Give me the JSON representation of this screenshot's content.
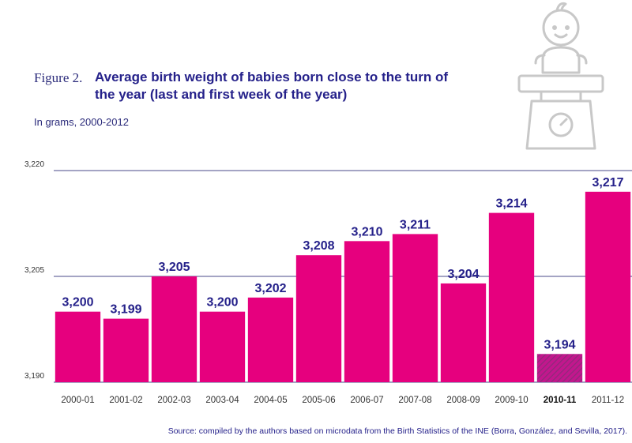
{
  "figure": {
    "label": "Figure 2.",
    "title": "Average birth weight of babies born close to the turn of the year (last and first week of the year)",
    "subtitle": "In grams, 2000-2012",
    "source": "Source: compiled by the authors based on microdata from the Birth Statistics of the INE (Borra, González, and Sevilla, 2017)."
  },
  "colors": {
    "bar": "#e6007e",
    "highlight_bar_hatch": "#8f2a7a",
    "highlight_bar_base": "#c2178d",
    "value_label": "#25218a",
    "gridline": "#4a4a8a",
    "tick_label": "#333333",
    "illustration": "#c8c8c8"
  },
  "illustration": {
    "icon": "baby-on-scale-icon"
  },
  "chart_data": {
    "type": "bar",
    "categories": [
      "2000-01",
      "2001-02",
      "2002-03",
      "2003-04",
      "2004-05",
      "2005-06",
      "2006-07",
      "2007-08",
      "2008-09",
      "2009-10",
      "2010-11",
      "2011-12"
    ],
    "values": [
      3200,
      3199,
      3205,
      3200,
      3202,
      3208,
      3210,
      3211,
      3204,
      3214,
      3194,
      3217
    ],
    "value_labels": [
      "3,200",
      "3,199",
      "3,205",
      "3,200",
      "3,202",
      "3,208",
      "3,210",
      "3,211",
      "3,204",
      "3,214",
      "3,194",
      "3,217"
    ],
    "highlight_category": "2010-11",
    "ylim": [
      3190,
      3220
    ],
    "yticks": [
      3190,
      3205,
      3220
    ],
    "ytick_labels": [
      "3,190",
      "3,205",
      "3,220"
    ],
    "grid": true
  }
}
